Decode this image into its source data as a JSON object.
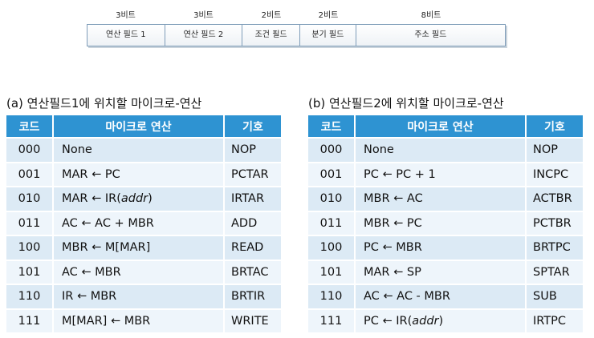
{
  "format": {
    "bits": [
      "3비트",
      "3비트",
      "2비트",
      "2비트",
      "8비트"
    ],
    "fields": [
      "연산 필드 1",
      "연산 필드 2",
      "조건 필드",
      "분기 필드",
      "주소 필드"
    ]
  },
  "table_a": {
    "title": "(a) 연산필드1에 위치할 마이크로-연산",
    "headers": [
      "코드",
      "마이크로 연산",
      "기호"
    ],
    "rows": [
      {
        "code": "000",
        "micro": "None",
        "sym": "NOP"
      },
      {
        "code": "001",
        "micro": "MAR ← PC",
        "sym": "PCTAR"
      },
      {
        "code": "010",
        "micro": "MAR ← IR(",
        "micro_italic": "addr",
        "micro_after": ")",
        "sym": "IRTAR"
      },
      {
        "code": "011",
        "micro": "AC ← AC + MBR",
        "sym": "ADD"
      },
      {
        "code": "100",
        "micro": "MBR ← M[MAR]",
        "sym": "READ"
      },
      {
        "code": "101",
        "micro": "AC ← MBR",
        "sym": "BRTAC"
      },
      {
        "code": "110",
        "micro": "IR ← MBR",
        "sym": "BRTIR"
      },
      {
        "code": "111",
        "micro": "M[MAR] ← MBR",
        "sym": "WRITE"
      }
    ]
  },
  "table_b": {
    "title": "(b) 연산필드2에 위치할 마이크로-연산",
    "headers": [
      "코드",
      "마이크로 연산",
      "기호"
    ],
    "rows": [
      {
        "code": "000",
        "micro": "None",
        "sym": "NOP"
      },
      {
        "code": "001",
        "micro": "PC ← PC + 1",
        "sym": "INCPC"
      },
      {
        "code": "010",
        "micro": "MBR ← AC",
        "sym": "ACTBR"
      },
      {
        "code": "011",
        "micro": "MBR ← PC",
        "sym": "PCTBR"
      },
      {
        "code": "100",
        "micro": "PC ← MBR",
        "sym": "BRTPC"
      },
      {
        "code": "101",
        "micro": "MAR ← SP",
        "sym": "SPTAR"
      },
      {
        "code": "110",
        "micro": "AC ← AC - MBR",
        "sym": "SUB"
      },
      {
        "code": "111",
        "micro": "PC ← IR(",
        "micro_italic": "addr",
        "micro_after": ")",
        "sym": "IRTPC"
      }
    ]
  }
}
